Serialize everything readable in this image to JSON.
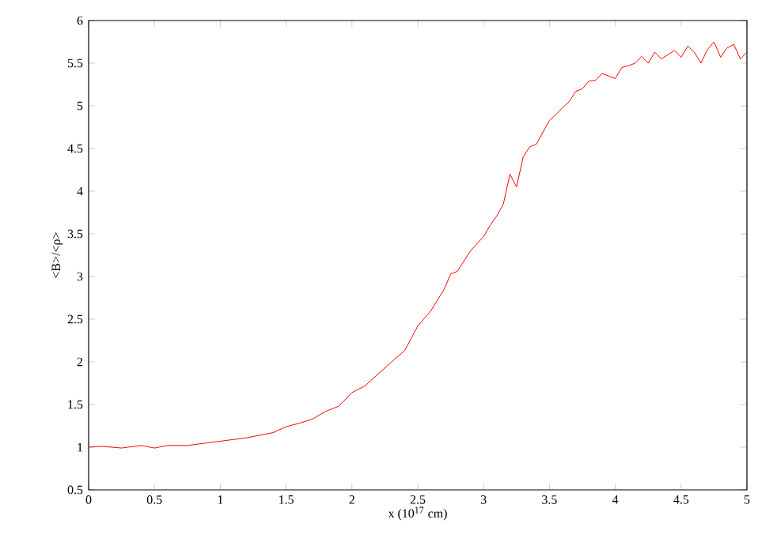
{
  "chart_data": {
    "type": "line",
    "xlabel": "x (10$^{17}$ cm)",
    "ylabel": "<B>/<ρ>",
    "xlim": [
      0,
      5
    ],
    "ylim": [
      0.5,
      6
    ],
    "xticks": [
      0,
      0.5,
      1,
      1.5,
      2,
      2.5,
      3,
      3.5,
      4,
      4.5,
      5
    ],
    "yticks": [
      0.5,
      1,
      1.5,
      2,
      2.5,
      3,
      3.5,
      4,
      4.5,
      5,
      5.5,
      6
    ],
    "series": [
      {
        "color": "#ff0000",
        "x": [
          0,
          0.1,
          0.25,
          0.4,
          0.5,
          0.6,
          0.75,
          0.9,
          1.0,
          1.2,
          1.4,
          1.5,
          1.6,
          1.7,
          1.8,
          1.9,
          2.0,
          2.1,
          2.2,
          2.33,
          2.4,
          2.5,
          2.6,
          2.7,
          2.75,
          2.8,
          2.9,
          3.0,
          3.05,
          3.1,
          3.15,
          3.2,
          3.25,
          3.3,
          3.35,
          3.4,
          3.5,
          3.55,
          3.6,
          3.65,
          3.7,
          3.75,
          3.8,
          3.85,
          3.9,
          3.95,
          4.0,
          4.05,
          4.1,
          4.15,
          4.2,
          4.25,
          4.3,
          4.35,
          4.4,
          4.45,
          4.5,
          4.55,
          4.6,
          4.65,
          4.7,
          4.75,
          4.8,
          4.85,
          4.9,
          4.95,
          5.0
        ],
        "values": [
          1.0,
          1.01,
          0.99,
          1.02,
          0.99,
          1.02,
          1.02,
          1.05,
          1.07,
          1.11,
          1.17,
          1.24,
          1.28,
          1.33,
          1.42,
          1.48,
          1.64,
          1.72,
          1.86,
          2.04,
          2.13,
          2.42,
          2.6,
          2.85,
          3.03,
          3.06,
          3.3,
          3.47,
          3.6,
          3.71,
          3.85,
          4.2,
          4.05,
          4.4,
          4.52,
          4.55,
          4.83,
          4.9,
          4.98,
          5.05,
          5.17,
          5.2,
          5.29,
          5.3,
          5.38,
          5.35,
          5.32,
          5.45,
          5.47,
          5.5,
          5.58,
          5.5,
          5.63,
          5.55,
          5.6,
          5.65,
          5.57,
          5.7,
          5.63,
          5.5,
          5.66,
          5.75,
          5.57,
          5.68,
          5.72,
          5.55,
          5.63
        ]
      }
    ]
  }
}
